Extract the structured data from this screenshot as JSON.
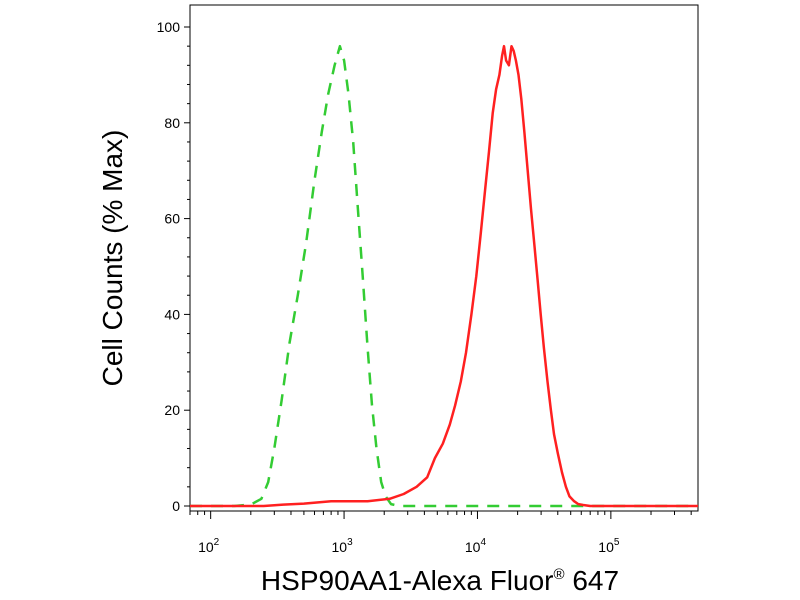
{
  "chart_data": {
    "type": "line",
    "xlabel": "HSP90AA1-Alexa Fluor",
    "xlabel_sup": "®",
    "xlabel_suffix": " 647",
    "ylabel": "Cell Counts (% Max)",
    "xscale": "log",
    "xlim": [
      70,
      450000
    ],
    "ylim": [
      0,
      100
    ],
    "x_ticks": [
      {
        "base": "10",
        "exp": "2",
        "value": 100
      },
      {
        "base": "10",
        "exp": "3",
        "value": 1000
      },
      {
        "base": "10",
        "exp": "4",
        "value": 10000
      },
      {
        "base": "10",
        "exp": "5",
        "value": 100000
      }
    ],
    "y_ticks": [
      {
        "label": "0",
        "value": 0
      },
      {
        "label": "20",
        "value": 20
      },
      {
        "label": "40",
        "value": 40
      },
      {
        "label": "60",
        "value": 60
      },
      {
        "label": "80",
        "value": 80
      },
      {
        "label": "100",
        "value": 100
      }
    ],
    "grid": false,
    "legend": "none",
    "series": [
      {
        "color": "#33cc33",
        "style": "dashed",
        "points": [
          [
            70,
            0
          ],
          [
            150,
            0
          ],
          [
            200,
            0.3
          ],
          [
            240,
            1.5
          ],
          [
            270,
            5
          ],
          [
            300,
            12
          ],
          [
            340,
            22
          ],
          [
            390,
            34
          ],
          [
            450,
            44
          ],
          [
            520,
            55
          ],
          [
            600,
            68
          ],
          [
            680,
            78
          ],
          [
            760,
            86
          ],
          [
            850,
            92
          ],
          [
            930,
            96
          ],
          [
            1000,
            93
          ],
          [
            1080,
            86
          ],
          [
            1170,
            76
          ],
          [
            1270,
            62
          ],
          [
            1380,
            48
          ],
          [
            1500,
            33
          ],
          [
            1620,
            21
          ],
          [
            1750,
            12
          ],
          [
            1900,
            5
          ],
          [
            2050,
            2
          ],
          [
            2250,
            0.4
          ],
          [
            2600,
            0
          ],
          [
            450000,
            0
          ]
        ]
      },
      {
        "color": "#ff2020",
        "style": "solid",
        "points": [
          [
            70,
            0
          ],
          [
            250,
            0
          ],
          [
            350,
            0.3
          ],
          [
            500,
            0.5
          ],
          [
            800,
            1
          ],
          [
            1500,
            1
          ],
          [
            2200,
            1.5
          ],
          [
            2800,
            2.5
          ],
          [
            3500,
            4
          ],
          [
            4200,
            6
          ],
          [
            4800,
            10
          ],
          [
            5500,
            13
          ],
          [
            6200,
            17
          ],
          [
            6800,
            21
          ],
          [
            7500,
            26
          ],
          [
            8200,
            32
          ],
          [
            9000,
            40
          ],
          [
            9800,
            48
          ],
          [
            10600,
            57
          ],
          [
            11400,
            66
          ],
          [
            12200,
            74
          ],
          [
            13000,
            82
          ],
          [
            13800,
            87
          ],
          [
            14600,
            90
          ],
          [
            15300,
            94
          ],
          [
            15800,
            96
          ],
          [
            16400,
            93
          ],
          [
            17200,
            92
          ],
          [
            18000,
            96
          ],
          [
            18700,
            95
          ],
          [
            19400,
            93
          ],
          [
            20300,
            90
          ],
          [
            21300,
            85
          ],
          [
            22500,
            78
          ],
          [
            23800,
            70
          ],
          [
            25200,
            62
          ],
          [
            26800,
            54
          ],
          [
            28300,
            47
          ],
          [
            29800,
            40
          ],
          [
            31500,
            33
          ],
          [
            33500,
            26
          ],
          [
            35500,
            20
          ],
          [
            37500,
            15
          ],
          [
            40000,
            11
          ],
          [
            43000,
            7
          ],
          [
            46000,
            4
          ],
          [
            49000,
            2
          ],
          [
            53000,
            1
          ],
          [
            57000,
            0.4
          ],
          [
            62000,
            0.2
          ],
          [
            70000,
            0
          ],
          [
            450000,
            0
          ]
        ]
      }
    ]
  }
}
